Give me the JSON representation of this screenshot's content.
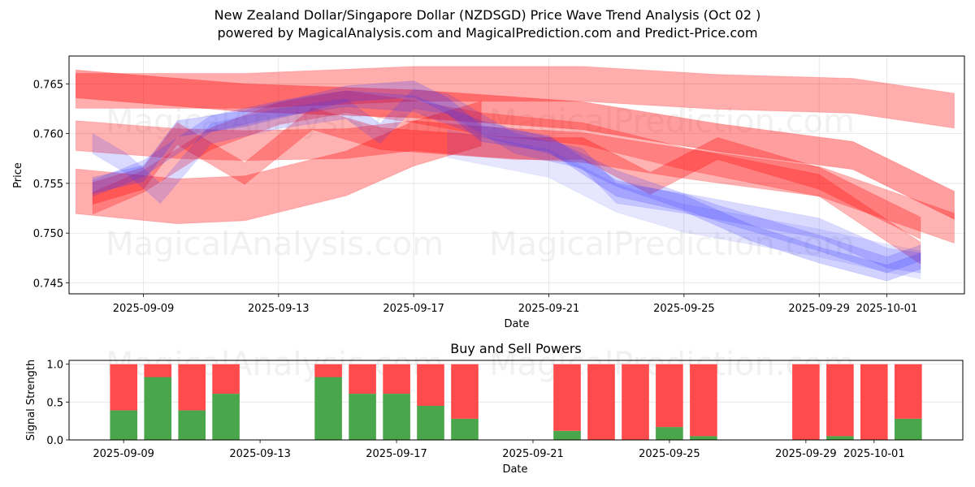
{
  "header": {
    "title": "New Zealand Dollar/Singapore Dollar (NZDSGD) Price Wave Trend Analysis (Oct 02 )",
    "subtitle": "powered by MagicalAnalysis.com and MagicalPrediction.com and Predict-Price.com"
  },
  "watermarks": [
    "MagicalAnalysis.com",
    "MagicalPrediction.com"
  ],
  "colors": {
    "buy": "#4aa64a",
    "sell": "#ff4b4b",
    "band_red": "#ff0000",
    "band_blue": "#3333ff"
  },
  "chart_data": [
    {
      "type": "area",
      "title": "",
      "xlabel": "Date",
      "ylabel": "Price",
      "xlim": [
        "2025-09-06.8",
        "2025-10-03.3"
      ],
      "ylim": [
        0.7439,
        0.7678
      ],
      "grid": true,
      "xticks": [
        "2025-09-09",
        "2025-09-13",
        "2025-09-17",
        "2025-09-21",
        "2025-09-25",
        "2025-09-29",
        "2025-10-01"
      ],
      "yticks": [
        "0.745",
        "0.750",
        "0.755",
        "0.760",
        "0.765"
      ],
      "series": [
        {
          "name": "red-wide-top",
          "color": "red",
          "alpha": 0.32,
          "width": 0.0035,
          "x": [
            "2025-09-07",
            "2025-09-12",
            "2025-09-17",
            "2025-09-22",
            "2025-09-26",
            "2025-09-30",
            "2025-10-03"
          ],
          "y": [
            0.7643,
            0.7643,
            0.765,
            0.765,
            0.7642,
            0.7638,
            0.7623
          ]
        },
        {
          "name": "red-wide-bottom",
          "color": "red",
          "alpha": 0.32,
          "width": 0.0045,
          "x": [
            "2025-09-07",
            "2025-09-10",
            "2025-09-12",
            "2025-09-15",
            "2025-09-17",
            "2025-09-19"
          ],
          "y": [
            0.7542,
            0.7532,
            0.7535,
            0.756,
            0.759,
            0.761
          ]
        },
        {
          "name": "red-dark-upper",
          "color": "red",
          "alpha": 0.38,
          "width": 0.0028,
          "x": [
            "2025-09-07",
            "2025-09-12",
            "2025-09-17",
            "2025-09-22",
            "2025-09-26",
            "2025-09-30",
            "2025-10-03"
          ],
          "y": [
            0.765,
            0.7636,
            0.763,
            0.7618,
            0.7596,
            0.7578,
            0.7528
          ]
        },
        {
          "name": "red-mid-1",
          "color": "red",
          "alpha": 0.3,
          "width": 0.003,
          "x": [
            "2025-09-07",
            "2025-09-10",
            "2025-09-12",
            "2025-09-15",
            "2025-09-17",
            "2025-09-19",
            "2025-09-22",
            "2025-09-25",
            "2025-09-29",
            "2025-10-03"
          ],
          "y": [
            0.7598,
            0.759,
            0.7588,
            0.759,
            0.7598,
            0.7592,
            0.7586,
            0.757,
            0.7552,
            0.7505
          ]
        },
        {
          "name": "red-wave-1",
          "color": "red",
          "alpha": 0.3,
          "width": 0.0022,
          "x": [
            "2025-09-07.5",
            "2025-09-09",
            "2025-09-10",
            "2025-09-12",
            "2025-09-14",
            "2025-09-16",
            "2025-09-18",
            "2025-09-20",
            "2025-09-22",
            "2025-09-24",
            "2025-09-26",
            "2025-09-29",
            "2025-10-02"
          ],
          "y": [
            0.754,
            0.7555,
            0.76,
            0.756,
            0.7615,
            0.7595,
            0.759,
            0.7585,
            0.7585,
            0.755,
            0.7585,
            0.7555,
            0.7505
          ]
        },
        {
          "name": "red-wave-2",
          "color": "red",
          "alpha": 0.28,
          "width": 0.0022,
          "x": [
            "2025-09-07.5",
            "2025-09-09",
            "2025-09-11",
            "2025-09-13",
            "2025-09-15",
            "2025-09-17",
            "2025-09-19",
            "2025-09-22",
            "2025-09-25",
            "2025-09-29",
            "2025-10-02"
          ],
          "y": [
            0.753,
            0.7552,
            0.7595,
            0.762,
            0.7632,
            0.7622,
            0.761,
            0.76,
            0.7575,
            0.7548,
            0.748
          ]
        },
        {
          "name": "blue-wave-1",
          "color": "blue",
          "alpha": 0.18,
          "width": 0.002,
          "x": [
            "2025-09-07.5",
            "2025-09-08.5",
            "2025-09-09.5",
            "2025-09-11",
            "2025-09-13",
            "2025-09-15",
            "2025-09-16",
            "2025-09-17",
            "2025-09-18",
            "2025-09-20",
            "2025-09-22",
            "2025-09-23",
            "2025-09-25",
            "2025-09-29",
            "2025-10-01",
            "2025-10-02"
          ],
          "y": [
            0.759,
            0.757,
            0.754,
            0.76,
            0.7615,
            0.7625,
            0.76,
            0.7635,
            0.763,
            0.759,
            0.7575,
            0.754,
            0.753,
            0.7505,
            0.7475,
            0.747
          ]
        },
        {
          "name": "blue-wave-2",
          "color": "blue",
          "alpha": 0.22,
          "width": 0.0016,
          "x": [
            "2025-09-07.5",
            "2025-09-09",
            "2025-09-10",
            "2025-09-12",
            "2025-09-15",
            "2025-09-17",
            "2025-09-18",
            "2025-09-19",
            "2025-09-21",
            "2025-09-23",
            "2025-09-25",
            "2025-09-27",
            "2025-09-29",
            "2025-10-01",
            "2025-10-02"
          ],
          "y": [
            0.7548,
            0.756,
            0.7605,
            0.7615,
            0.764,
            0.7645,
            0.7628,
            0.76,
            0.759,
            0.7545,
            0.753,
            0.75,
            0.7478,
            0.746,
            0.7472
          ]
        },
        {
          "name": "blue-wave-3",
          "color": "blue",
          "alpha": 0.2,
          "width": 0.0016,
          "x": [
            "2025-09-07.5",
            "2025-09-09",
            "2025-09-11",
            "2025-09-13",
            "2025-09-15",
            "2025-09-17",
            "2025-09-19",
            "2025-09-21",
            "2025-09-23",
            "2025-09-26",
            "2025-09-29",
            "2025-10-01",
            "2025-10-02"
          ],
          "y": [
            0.7545,
            0.7565,
            0.761,
            0.7625,
            0.7635,
            0.763,
            0.7605,
            0.7588,
            0.7555,
            0.752,
            0.749,
            0.7468,
            0.748
          ]
        },
        {
          "name": "blue-light-lower",
          "color": "blue",
          "alpha": 0.12,
          "width": 0.0028,
          "x": [
            "2025-09-18",
            "2025-09-21",
            "2025-09-23",
            "2025-09-25",
            "2025-09-29",
            "2025-10-01",
            "2025-10-02"
          ],
          "y": [
            0.759,
            0.757,
            0.7535,
            0.7515,
            0.749,
            0.7475,
            0.7468
          ]
        }
      ]
    },
    {
      "type": "bar",
      "title": "Buy and Sell Powers",
      "xlabel": "Date",
      "ylabel": "Signal Strength",
      "ylim": [
        0.0,
        1.05
      ],
      "xlim": [
        "2025-09-07.4",
        "2025-10-03.6"
      ],
      "grid": true,
      "xticks": [
        "2025-09-09",
        "2025-09-13",
        "2025-09-17",
        "2025-09-21",
        "2025-09-25",
        "2025-09-29",
        "2025-10-01"
      ],
      "yticks": [
        "0.0",
        "0.5",
        "1.0"
      ],
      "categories": [
        "2025-09-09",
        "2025-09-10",
        "2025-09-11",
        "2025-09-12",
        "2025-09-15",
        "2025-09-16",
        "2025-09-17",
        "2025-09-18",
        "2025-09-19",
        "2025-09-22",
        "2025-09-23",
        "2025-09-24",
        "2025-09-25",
        "2025-09-26",
        "2025-09-29",
        "2025-09-30",
        "2025-10-01",
        "2025-10-02"
      ],
      "series": [
        {
          "name": "Buy",
          "color": "#4aa64a",
          "values": [
            0.39,
            0.83,
            0.39,
            0.61,
            0.83,
            0.61,
            0.61,
            0.45,
            0.28,
            0.12,
            0.0,
            0.0,
            0.17,
            0.05,
            0.0,
            0.05,
            0.0,
            0.28
          ]
        },
        {
          "name": "Sell",
          "color": "#ff4b4b",
          "values": [
            0.61,
            0.17,
            0.61,
            0.39,
            0.17,
            0.39,
            0.39,
            0.55,
            0.72,
            0.88,
            1.0,
            1.0,
            0.83,
            0.95,
            1.0,
            0.95,
            1.0,
            0.72
          ]
        }
      ]
    }
  ]
}
